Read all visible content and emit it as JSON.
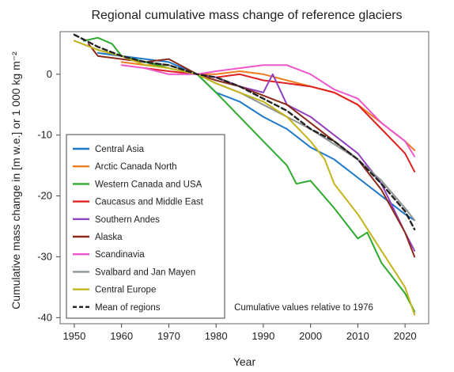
{
  "chart_data": {
    "type": "line",
    "title": "Regional cumulative mass change of reference glaciers",
    "xlabel": "Year",
    "ylabel": "Cumulative mass change in [m w.e.] or 1 000 kg m⁻²",
    "annotation": "Cumulative values relative to 1976",
    "xlim": [
      1947,
      2025
    ],
    "ylim": [
      -41,
      7
    ],
    "xticks": [
      1950,
      1960,
      1970,
      1980,
      1990,
      2000,
      2010,
      2020
    ],
    "yticks": [
      0,
      -10,
      -20,
      -30,
      -40
    ],
    "grid": false,
    "legend_position": "bottom-left",
    "series": [
      {
        "name": "Central Asia",
        "color": "#1f78c8",
        "dash": false,
        "points": [
          [
            1955,
            3.5
          ],
          [
            1960,
            3
          ],
          [
            1965,
            2.5
          ],
          [
            1970,
            2
          ],
          [
            1973,
            1
          ],
          [
            1976,
            0
          ],
          [
            1980,
            -3
          ],
          [
            1985,
            -4.5
          ],
          [
            1990,
            -7
          ],
          [
            1995,
            -9
          ],
          [
            2000,
            -12
          ],
          [
            2005,
            -14
          ],
          [
            2010,
            -17
          ],
          [
            2015,
            -20
          ],
          [
            2020,
            -23
          ],
          [
            2022,
            -24
          ]
        ]
      },
      {
        "name": "Arctic Canada North",
        "color": "#f07c1f",
        "dash": false,
        "points": [
          [
            1960,
            2
          ],
          [
            1965,
            1.5
          ],
          [
            1970,
            1.5
          ],
          [
            1976,
            0
          ],
          [
            1980,
            0
          ],
          [
            1985,
            0.5
          ],
          [
            1990,
            0
          ],
          [
            1995,
            -1
          ],
          [
            2000,
            -2
          ],
          [
            2005,
            -3
          ],
          [
            2010,
            -5
          ],
          [
            2015,
            -8
          ],
          [
            2020,
            -11
          ],
          [
            2022,
            -12.5
          ]
        ]
      },
      {
        "name": "Western Canada and USA",
        "color": "#2eaa2e",
        "dash": false,
        "points": [
          [
            1952,
            5.5
          ],
          [
            1955,
            6
          ],
          [
            1958,
            5
          ],
          [
            1960,
            3
          ],
          [
            1965,
            2
          ],
          [
            1970,
            1
          ],
          [
            1976,
            0
          ],
          [
            1980,
            -3
          ],
          [
            1985,
            -7
          ],
          [
            1990,
            -11
          ],
          [
            1995,
            -15
          ],
          [
            1997,
            -18
          ],
          [
            2000,
            -17.5
          ],
          [
            2005,
            -22
          ],
          [
            2010,
            -27
          ],
          [
            2012,
            -26
          ],
          [
            2015,
            -31
          ],
          [
            2020,
            -36
          ],
          [
            2022,
            -39
          ]
        ]
      },
      {
        "name": "Caucasus and Middle East",
        "color": "#e02020",
        "dash": false,
        "points": [
          [
            1965,
            1
          ],
          [
            1970,
            0.5
          ],
          [
            1976,
            0
          ],
          [
            1980,
            -0.5
          ],
          [
            1985,
            0
          ],
          [
            1990,
            -1
          ],
          [
            1995,
            -1.5
          ],
          [
            2000,
            -2
          ],
          [
            2005,
            -3
          ],
          [
            2010,
            -5
          ],
          [
            2015,
            -9
          ],
          [
            2020,
            -13
          ],
          [
            2022,
            -16
          ]
        ]
      },
      {
        "name": "Southern Andes",
        "color": "#9040c0",
        "dash": false,
        "points": [
          [
            1976,
            0
          ],
          [
            1980,
            -0.5
          ],
          [
            1985,
            -2
          ],
          [
            1990,
            -3
          ],
          [
            1992,
            0
          ],
          [
            1995,
            -5
          ],
          [
            2000,
            -7
          ],
          [
            2005,
            -10
          ],
          [
            2010,
            -13
          ],
          [
            2015,
            -18
          ],
          [
            2020,
            -26
          ],
          [
            2022,
            -29
          ]
        ]
      },
      {
        "name": "Alaska",
        "color": "#8b2a1a",
        "dash": false,
        "points": [
          [
            1953,
            5
          ],
          [
            1955,
            3
          ],
          [
            1960,
            2.5
          ],
          [
            1965,
            2
          ],
          [
            1970,
            2.5
          ],
          [
            1976,
            0
          ],
          [
            1980,
            -1
          ],
          [
            1985,
            -2
          ],
          [
            1990,
            -3.5
          ],
          [
            1995,
            -5
          ],
          [
            2000,
            -8
          ],
          [
            2005,
            -11
          ],
          [
            2010,
            -14
          ],
          [
            2015,
            -19
          ],
          [
            2020,
            -26
          ],
          [
            2022,
            -30
          ]
        ]
      },
      {
        "name": "Scandinavia",
        "color": "#ee55cc",
        "dash": false,
        "points": [
          [
            1960,
            1.5
          ],
          [
            1965,
            1
          ],
          [
            1970,
            0
          ],
          [
            1976,
            0
          ],
          [
            1980,
            0.5
          ],
          [
            1985,
            1
          ],
          [
            1990,
            1.5
          ],
          [
            1995,
            1.5
          ],
          [
            2000,
            0
          ],
          [
            2005,
            -2.5
          ],
          [
            2010,
            -4
          ],
          [
            2015,
            -8
          ],
          [
            2020,
            -11
          ],
          [
            2022,
            -13.5
          ]
        ]
      },
      {
        "name": "Svalbard and Jan Mayen",
        "color": "#8c9494",
        "dash": false,
        "points": [
          [
            1950,
            5.5
          ],
          [
            1955,
            4
          ],
          [
            1960,
            3
          ],
          [
            1965,
            2
          ],
          [
            1970,
            1.5
          ],
          [
            1976,
            0
          ],
          [
            1980,
            -1.5
          ],
          [
            1985,
            -3
          ],
          [
            1990,
            -5
          ],
          [
            1995,
            -7
          ],
          [
            2000,
            -9
          ],
          [
            2005,
            -11.5
          ],
          [
            2010,
            -14
          ],
          [
            2015,
            -17.5
          ],
          [
            2020,
            -22
          ],
          [
            2022,
            -24
          ]
        ]
      },
      {
        "name": "Central Europe",
        "color": "#c2b41a",
        "dash": false,
        "points": [
          [
            1950,
            5.5
          ],
          [
            1955,
            4
          ],
          [
            1960,
            3
          ],
          [
            1965,
            1.5
          ],
          [
            1970,
            1
          ],
          [
            1976,
            0
          ],
          [
            1980,
            -1.5
          ],
          [
            1985,
            -3
          ],
          [
            1990,
            -4.5
          ],
          [
            1995,
            -7
          ],
          [
            2000,
            -11
          ],
          [
            2003,
            -14
          ],
          [
            2005,
            -18
          ],
          [
            2010,
            -23
          ],
          [
            2015,
            -29
          ],
          [
            2020,
            -35
          ],
          [
            2022,
            -39.5
          ]
        ]
      },
      {
        "name": "Mean of regions",
        "color": "#222222",
        "dash": true,
        "points": [
          [
            1950,
            6.5
          ],
          [
            1955,
            4.5
          ],
          [
            1960,
            3
          ],
          [
            1965,
            2
          ],
          [
            1970,
            1.5
          ],
          [
            1976,
            0
          ],
          [
            1980,
            -0.5
          ],
          [
            1985,
            -2
          ],
          [
            1990,
            -4
          ],
          [
            1995,
            -6
          ],
          [
            2000,
            -9
          ],
          [
            2005,
            -11
          ],
          [
            2010,
            -14
          ],
          [
            2015,
            -18
          ],
          [
            2020,
            -22.5
          ],
          [
            2022,
            -25.5
          ]
        ]
      }
    ]
  }
}
